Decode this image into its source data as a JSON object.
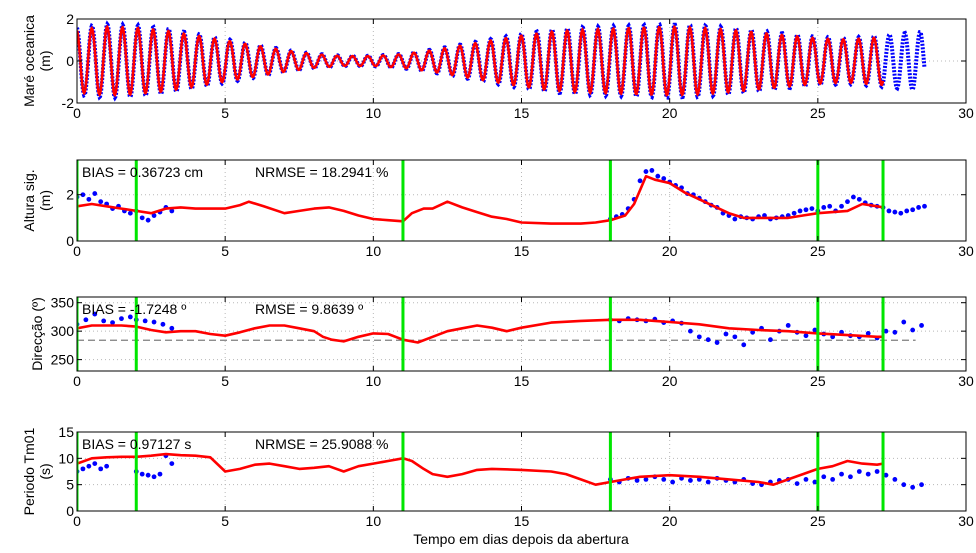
{
  "xlabel": "Tempo em dias depois da abertura",
  "colors": {
    "observed": "#0000ff",
    "model": "#ff0000",
    "markers": "#00e600",
    "reference": "#7f7f7f",
    "grid": "#b8b8b8"
  },
  "xticks": [
    "0",
    "5",
    "10",
    "15",
    "20",
    "25",
    "30"
  ],
  "xlim": [
    0,
    30
  ],
  "markers_x": [
    0,
    2,
    11,
    18,
    25,
    27.2
  ],
  "chart_data": [
    {
      "type": "line",
      "ylabel_line1": "Maré oceanica",
      "ylabel_line2": "(m)",
      "ylim": [
        -2,
        2
      ],
      "yticks": [
        "-2",
        "0",
        "2"
      ],
      "grid": true,
      "tide": {
        "period_days": 0.5175,
        "observed_x": [
          0,
          28.6
        ],
        "model_x": [
          0,
          27.2
        ],
        "amplitude": {
          "x": [
            0,
            1,
            2,
            3,
            4,
            5,
            6,
            7,
            8,
            9,
            10,
            11,
            12,
            13,
            14,
            15,
            16,
            17,
            18,
            19,
            20,
            21,
            22,
            23,
            24,
            25,
            26,
            27,
            28,
            28.6
          ],
          "y": [
            1.6,
            1.75,
            1.7,
            1.55,
            1.3,
            1.05,
            0.8,
            0.55,
            0.35,
            0.25,
            0.25,
            0.35,
            0.55,
            0.8,
            1.05,
            1.3,
            1.5,
            1.6,
            1.65,
            1.7,
            1.75,
            1.7,
            1.6,
            1.45,
            1.3,
            1.15,
            1.1,
            1.2,
            1.35,
            1.4
          ]
        }
      }
    },
    {
      "type": "line",
      "ylabel_line1": "Altura sig.",
      "ylabel_line2": "(m)",
      "ylim": [
        0,
        3.5
      ],
      "yticks": [
        "0",
        "2"
      ],
      "grid": true,
      "annotation_bias": "BIAS = 0.36723 cm",
      "annotation_error": "NRMSE = 18.2941 %",
      "model": {
        "x": [
          0,
          0.5,
          1,
          1.5,
          2,
          2.5,
          3,
          3.5,
          4,
          4.5,
          5,
          5.5,
          5.8,
          6.3,
          7,
          7.5,
          8,
          8.5,
          9,
          9.5,
          10,
          10.5,
          11,
          11.3,
          11.7,
          12,
          12.5,
          13,
          13.5,
          14,
          14.5,
          15,
          16,
          17,
          17.5,
          18,
          18.5,
          18.8,
          19.2,
          19.5,
          20,
          20.5,
          21,
          21.5,
          22,
          22.5,
          23,
          23.5,
          24,
          24.5,
          25,
          25.5,
          26,
          26.5,
          27,
          27.2
        ],
        "y": [
          1.5,
          1.6,
          1.5,
          1.4,
          1.3,
          1.2,
          1.4,
          1.45,
          1.4,
          1.4,
          1.4,
          1.55,
          1.7,
          1.5,
          1.2,
          1.3,
          1.4,
          1.45,
          1.3,
          1.1,
          0.95,
          0.9,
          0.85,
          1.2,
          1.4,
          1.4,
          1.7,
          1.45,
          1.25,
          1.05,
          0.95,
          0.8,
          0.75,
          0.75,
          0.8,
          0.9,
          1.1,
          1.6,
          2.8,
          2.65,
          2.5,
          2.1,
          1.8,
          1.5,
          1.2,
          1.0,
          1.0,
          1.0,
          1.0,
          1.1,
          1.2,
          1.25,
          1.3,
          1.6,
          1.5,
          1.45
        ]
      },
      "observed_points": {
        "x": [
          0,
          0.2,
          0.4,
          0.6,
          0.8,
          1,
          1.2,
          1.4,
          1.6,
          1.8,
          2,
          2.2,
          2.4,
          2.6,
          2.8,
          3,
          3.2,
          18,
          18.2,
          18.4,
          18.6,
          18.8,
          19,
          19.2,
          19.4,
          19.6,
          19.8,
          20,
          20.2,
          20.4,
          20.6,
          20.8,
          21,
          21.2,
          21.4,
          21.6,
          21.8,
          22,
          22.2,
          22.4,
          22.6,
          22.8,
          23,
          23.2,
          23.4,
          23.6,
          23.8,
          24,
          24.2,
          24.4,
          24.6,
          24.8,
          25,
          25.2,
          25.4,
          25.6,
          25.8,
          26,
          26.2,
          26.4,
          26.6,
          26.8,
          27,
          27.2,
          27.4,
          27.6,
          27.8,
          28,
          28.2,
          28.4,
          28.6
        ],
        "y": [
          1.9,
          2.0,
          1.8,
          2.05,
          1.7,
          1.6,
          1.4,
          1.5,
          1.3,
          1.2,
          1.3,
          1.0,
          0.9,
          1.1,
          1.25,
          1.45,
          1.3,
          0.95,
          1.05,
          1.15,
          1.4,
          1.8,
          2.6,
          3.0,
          3.05,
          2.8,
          2.7,
          2.55,
          2.4,
          2.3,
          2.05,
          2.0,
          1.85,
          1.7,
          1.55,
          1.45,
          1.2,
          1.1,
          0.95,
          1.05,
          1.0,
          0.95,
          1.05,
          1.1,
          0.95,
          1.0,
          1.05,
          1.1,
          1.2,
          1.3,
          1.35,
          1.4,
          1.3,
          1.45,
          1.5,
          1.3,
          1.5,
          1.7,
          1.9,
          1.8,
          1.65,
          1.55,
          1.5,
          1.45,
          1.3,
          1.25,
          1.2,
          1.3,
          1.35,
          1.45,
          1.5
        ]
      }
    },
    {
      "type": "line",
      "ylabel_line1": "Direcção (º)",
      "ylabel_line2": "",
      "ylim": [
        230,
        360
      ],
      "yticks": [
        "250",
        "300",
        "350"
      ],
      "grid": true,
      "annotation_bias": "BIAS = -1.7248 º",
      "annotation_error": "RMSE = 9.8639 º",
      "reference_level": 284,
      "model": {
        "x": [
          0,
          0.5,
          1,
          1.5,
          2,
          2.5,
          3,
          3.5,
          4,
          4.5,
          5,
          5.5,
          6,
          6.5,
          7,
          7.5,
          8,
          8.3,
          8.6,
          9,
          9.5,
          10,
          10.5,
          11,
          11.5,
          12,
          12.5,
          13,
          13.5,
          14,
          14.5,
          15,
          16,
          17,
          18,
          18.5,
          19,
          19.5,
          20,
          21,
          22,
          23,
          24,
          25,
          26,
          27,
          27.2
        ],
        "y": [
          305,
          310,
          310,
          310,
          308,
          302,
          298,
          300,
          300,
          295,
          292,
          298,
          305,
          310,
          310,
          305,
          300,
          290,
          285,
          282,
          290,
          296,
          295,
          285,
          280,
          290,
          300,
          305,
          310,
          306,
          300,
          306,
          315,
          318,
          320,
          320,
          320,
          318,
          316,
          312,
          305,
          302,
          300,
          296,
          293,
          290,
          290
        ]
      },
      "observed_points": {
        "x": [
          0,
          0.3,
          0.6,
          0.9,
          1.2,
          1.5,
          1.8,
          2,
          2.3,
          2.6,
          2.9,
          3.2,
          18,
          18.3,
          18.6,
          18.9,
          19.2,
          19.5,
          19.8,
          20.1,
          20.4,
          20.7,
          21,
          21.3,
          21.6,
          21.9,
          22.2,
          22.5,
          22.8,
          23.1,
          23.4,
          23.7,
          24,
          24.3,
          24.6,
          24.9,
          25.2,
          25.5,
          25.8,
          26.1,
          26.4,
          26.7,
          27,
          27.3,
          27.6,
          27.9,
          28.2,
          28.5
        ],
        "y": [
          312,
          320,
          330,
          318,
          315,
          322,
          325,
          320,
          318,
          316,
          312,
          305,
          320,
          318,
          322,
          320,
          318,
          321,
          315,
          318,
          314,
          300,
          290,
          285,
          280,
          295,
          290,
          276,
          298,
          305,
          285,
          300,
          310,
          298,
          292,
          302,
          295,
          290,
          298,
          292,
          290,
          296,
          288,
          300,
          298,
          316,
          302,
          310
        ]
      }
    },
    {
      "type": "line",
      "ylabel_line1": "Periodo Tm01",
      "ylabel_line2": "(s)",
      "ylim": [
        0,
        15
      ],
      "yticks": [
        "0",
        "5",
        "10",
        "15"
      ],
      "grid": true,
      "annotation_bias": "BIAS = 0.97127 s",
      "annotation_error": "NRMSE = 25.9088 %",
      "model": {
        "x": [
          0,
          0.5,
          1,
          1.5,
          2,
          2.5,
          3,
          3.5,
          4,
          4.5,
          5,
          5.5,
          6,
          6.5,
          7,
          7.5,
          8,
          8.5,
          9,
          9.5,
          10,
          10.5,
          11,
          11.3,
          11.7,
          12,
          12.5,
          13,
          13.5,
          14,
          15,
          16,
          16.5,
          17,
          17.5,
          18,
          18.5,
          19,
          20,
          21,
          22,
          23,
          23.5,
          24,
          24.5,
          25,
          25.5,
          26,
          26.5,
          27,
          27.2
        ],
        "y": [
          9,
          10,
          10.2,
          10.3,
          10.3,
          10.5,
          10.8,
          10.6,
          10.5,
          10.2,
          7.5,
          8,
          8.8,
          9,
          8.5,
          8,
          8.2,
          8.5,
          7.5,
          8.5,
          9,
          9.5,
          10,
          9.5,
          8,
          7,
          6.5,
          7,
          7.8,
          8,
          7.8,
          7.5,
          7,
          6,
          5,
          5.5,
          6,
          6.5,
          6.8,
          6.5,
          6,
          5.5,
          5,
          6,
          7,
          8,
          8.5,
          9.5,
          9,
          8.8,
          9
        ]
      },
      "observed_points": {
        "x": [
          0,
          0.2,
          0.4,
          0.6,
          0.8,
          1,
          2,
          2.2,
          2.4,
          2.6,
          2.8,
          3,
          3.2,
          18,
          18.3,
          18.6,
          18.9,
          19.2,
          19.5,
          19.8,
          20.1,
          20.4,
          20.7,
          21,
          21.3,
          21.6,
          21.9,
          22.2,
          22.5,
          22.8,
          23.1,
          23.4,
          23.7,
          24,
          24.3,
          24.6,
          24.9,
          25.2,
          25.5,
          25.8,
          26.1,
          26.4,
          26.7,
          27,
          27.3,
          27.6,
          27.9,
          28.2,
          28.5
        ],
        "y": [
          7.5,
          8,
          8.5,
          9,
          8,
          8.5,
          7.5,
          7,
          6.8,
          6.5,
          7,
          10.5,
          9,
          6,
          5.5,
          6.2,
          5.8,
          6,
          6.5,
          6,
          5.5,
          6.2,
          5.8,
          6,
          5.5,
          6.2,
          5.8,
          5.5,
          6,
          5.2,
          5,
          5.5,
          5.8,
          6,
          5.2,
          6,
          5.5,
          6.5,
          6,
          7,
          6.5,
          7.5,
          7,
          7.5,
          6.8,
          6,
          5,
          4.5,
          5
        ]
      }
    }
  ]
}
